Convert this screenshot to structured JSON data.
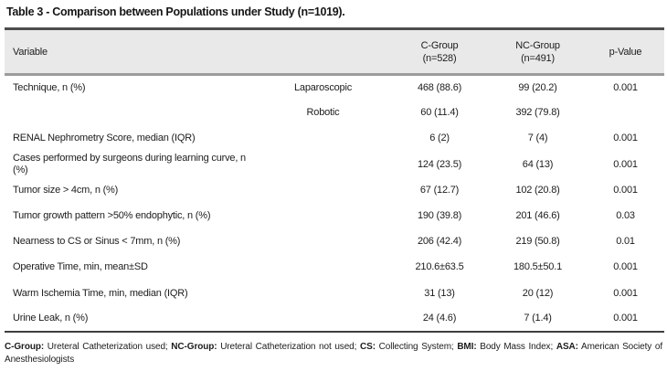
{
  "title": "Table 3 - Comparison between Populations under Study (n=1019).",
  "table": {
    "header": {
      "variable": "Variable",
      "c_group": {
        "label": "C-Group",
        "sub": "(n=528)"
      },
      "nc_group": {
        "label": "NC-Group",
        "sub": "(n=491)"
      },
      "p_value": "p-Value"
    },
    "rows": [
      {
        "variable": "Technique, n (%)",
        "sub": "Laparoscopic",
        "c": "468 (88.6)",
        "nc": "99 (20.2)",
        "p": "0.001"
      },
      {
        "variable": "",
        "sub": "Robotic",
        "c": "60 (11.4)",
        "nc": "392 (79.8)",
        "p": ""
      },
      {
        "variable": "RENAL Nephrometry Score, median (IQR)",
        "sub": "",
        "c": "6 (2)",
        "nc": "7 (4)",
        "p": "0.001"
      },
      {
        "variable": "Cases performed by surgeons during learning curve, n (%)",
        "sub": "",
        "c": "124 (23.5)",
        "nc": "64 (13)",
        "p": "0.001"
      },
      {
        "variable": "Tumor size > 4cm, n (%)",
        "sub": "",
        "c": "67 (12.7)",
        "nc": "102 (20.8)",
        "p": "0.001"
      },
      {
        "variable": "Tumor growth pattern >50% endophytic, n (%)",
        "sub": "",
        "c": "190 (39.8)",
        "nc": "201 (46.6)",
        "p": "0.03"
      },
      {
        "variable": "Nearness to CS or Sinus < 7mm, n (%)",
        "sub": "",
        "c": "206 (42.4)",
        "nc": "219 (50.8)",
        "p": "0.01"
      },
      {
        "variable": "Operative Time, min, mean±SD",
        "sub": "",
        "c": "210.6±63.5",
        "nc": "180.5±50.1",
        "p": "0.001"
      },
      {
        "variable": "Warm Ischemia Time, min, median (IQR)",
        "sub": "",
        "c": "31 (13)",
        "nc": "20 (12)",
        "p": "0.001"
      },
      {
        "variable": "Urine Leak, n (%)",
        "sub": "",
        "c": "24 (4.6)",
        "nc": "7 (1.4)",
        "p": "0.001"
      }
    ]
  },
  "footnote": {
    "segments": [
      {
        "label": "C-Group:",
        "text": "Ureteral Catheterization used;"
      },
      {
        "label": "NC-Group:",
        "text": "Ureteral Catheterization not used;"
      },
      {
        "label": "CS:",
        "text": "Collecting System;"
      },
      {
        "label": "BMI:",
        "text": "Body Mass Index;"
      },
      {
        "label": "ASA:",
        "text": "American Society of Anesthesiologists"
      }
    ]
  },
  "colors": {
    "header_bg": "#e9e9e9",
    "top_border": "#4d4d4d",
    "header_divider": "#9c9c9c",
    "bottom_border": "#3f3f3f",
    "text": "#1c1c1c"
  }
}
